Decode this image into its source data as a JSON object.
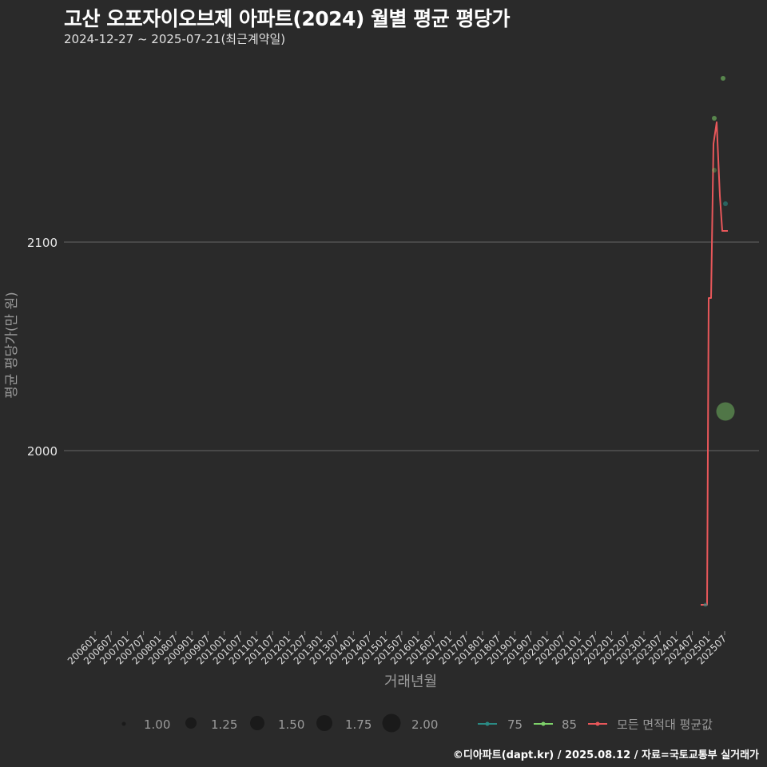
{
  "header": {
    "title": "고산 오포자이오브제 아파트(2024) 월별 평균 평당가",
    "subtitle": "2024-12-27 ~ 2025-07-21(최근계약일)"
  },
  "caption": "©디아파트(dapt.kr) / 2025.08.12 / 자료=국토교통부 실거래가",
  "axes": {
    "x_title": "거래년월",
    "y_title": "평균 평당가(만 원)",
    "y_ticks": [
      "2100",
      "2000"
    ]
  },
  "legend": {
    "size": [
      {
        "label": "1.00"
      },
      {
        "label": "1.25"
      },
      {
        "label": "1.50"
      },
      {
        "label": "1.75"
      },
      {
        "label": "2.00"
      }
    ],
    "series": [
      {
        "label": "75",
        "color": "#2a8a84"
      },
      {
        "label": "85",
        "color": "#7ed26a"
      },
      {
        "label": "모든 면적대 평균값",
        "color": "#e8575a"
      }
    ]
  },
  "chart_data": {
    "type": "line",
    "title": "고산 오포자이오브제 아파트(2024) 월별 평균 평당가",
    "subtitle": "2024-12-27 ~ 2025-07-21(최근계약일)",
    "xlabel": "거래년월",
    "ylabel": "평균 평당가(만 원)",
    "x_ticks": [
      "200601",
      "200607",
      "200701",
      "200707",
      "200801",
      "200807",
      "200901",
      "200907",
      "201001",
      "201007",
      "201101",
      "201107",
      "201201",
      "201207",
      "201301",
      "201307",
      "201401",
      "201407",
      "201501",
      "201507",
      "201601",
      "201607",
      "201701",
      "201707",
      "201801",
      "201807",
      "201901",
      "201907",
      "202001",
      "202007",
      "202101",
      "202107",
      "202201",
      "202207",
      "202301",
      "202307",
      "202401",
      "202407",
      "202501",
      "202507"
    ],
    "y_ticks": [
      2000,
      2100
    ],
    "ylim": [
      1915,
      2185
    ],
    "grid": "horizontal major",
    "legend_position": "bottom",
    "series": [
      {
        "name": "모든 면적대 평균값",
        "type": "line-step",
        "color": "#e8575a",
        "x": [
          "202412",
          "202501",
          "202502",
          "202503",
          "202504",
          "202505",
          "202506",
          "202507"
        ],
        "values": [
          1926,
          1926,
          2073,
          2073,
          2147,
          2157,
          2122,
          2105
        ]
      },
      {
        "name": "85",
        "type": "scatter",
        "color": "#7ed26a",
        "points": [
          {
            "x": "202503",
            "y": 2159,
            "size": 1.0
          },
          {
            "x": "202503",
            "y": 2134,
            "size": 1.0
          },
          {
            "x": "202506",
            "y": 2178,
            "size": 1.0
          },
          {
            "x": "202507",
            "y": 2019,
            "size": 2.0
          }
        ]
      },
      {
        "name": "75",
        "type": "scatter",
        "color": "#2a8a84",
        "points": [
          {
            "x": "202412",
            "y": 1926,
            "size": 1.0
          },
          {
            "x": "202507",
            "y": 2118,
            "size": 1.0
          }
        ]
      }
    ],
    "size_legend": [
      1.0,
      1.25,
      1.5,
      1.75,
      2.0
    ]
  }
}
